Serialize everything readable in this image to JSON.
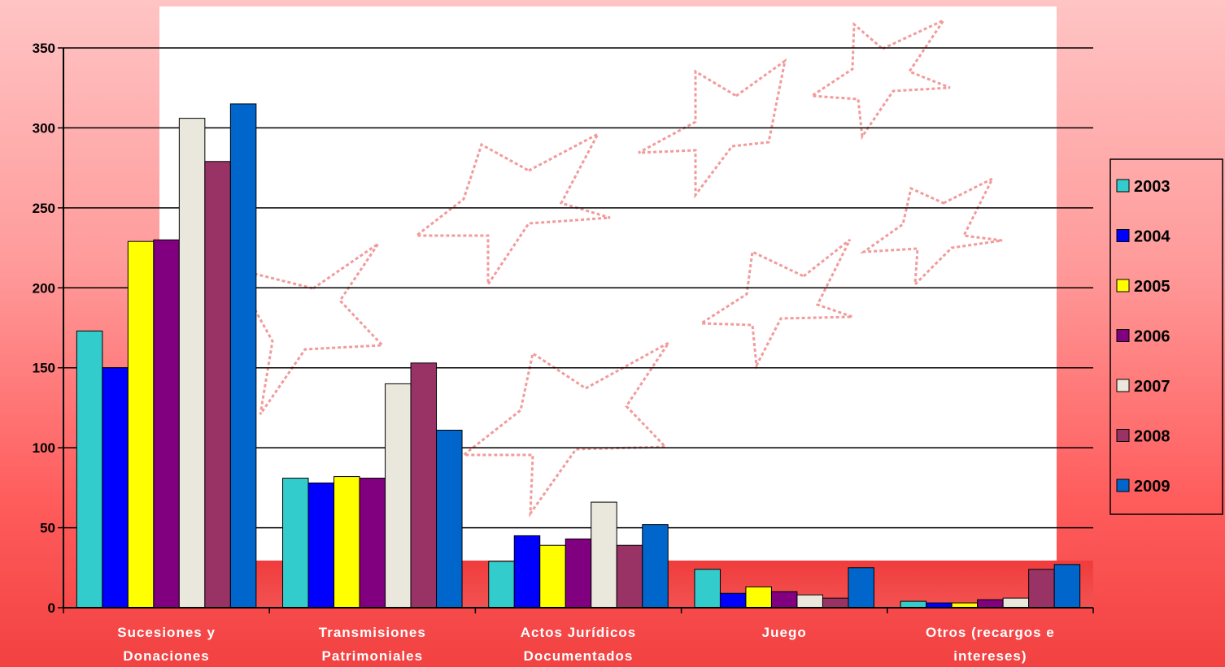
{
  "chart_data": {
    "type": "bar",
    "categories": [
      [
        "Sucesiones y",
        "Donaciones"
      ],
      [
        "Transmisiones",
        "Patrimoniales"
      ],
      [
        "Actos Jurídicos",
        "Documentados"
      ],
      [
        "Juego"
      ],
      [
        "Otros (recargos e",
        "intereses)"
      ]
    ],
    "series": [
      {
        "name": "2003",
        "color": "#33cccc",
        "values": [
          173,
          81,
          29,
          24,
          4
        ]
      },
      {
        "name": "2004",
        "color": "#0000ff",
        "values": [
          150,
          78,
          45,
          9,
          3
        ]
      },
      {
        "name": "2005",
        "color": "#ffff00",
        "values": [
          229,
          82,
          39,
          13,
          3
        ]
      },
      {
        "name": "2006",
        "color": "#800080",
        "values": [
          230,
          81,
          43,
          10,
          5
        ]
      },
      {
        "name": "2007",
        "color": "#eae8dc",
        "values": [
          306,
          140,
          66,
          8,
          6
        ]
      },
      {
        "name": "2008",
        "color": "#993366",
        "values": [
          279,
          153,
          39,
          6,
          24
        ]
      },
      {
        "name": "2009",
        "color": "#0066cc",
        "values": [
          315,
          111,
          52,
          25,
          27
        ]
      }
    ],
    "yticks": [
      0,
      50,
      100,
      150,
      200,
      250,
      300,
      350
    ],
    "ylim": [
      0,
      350
    ],
    "grid": true,
    "legend_position": "right",
    "title": "",
    "xlabel": "",
    "ylabel": ""
  }
}
